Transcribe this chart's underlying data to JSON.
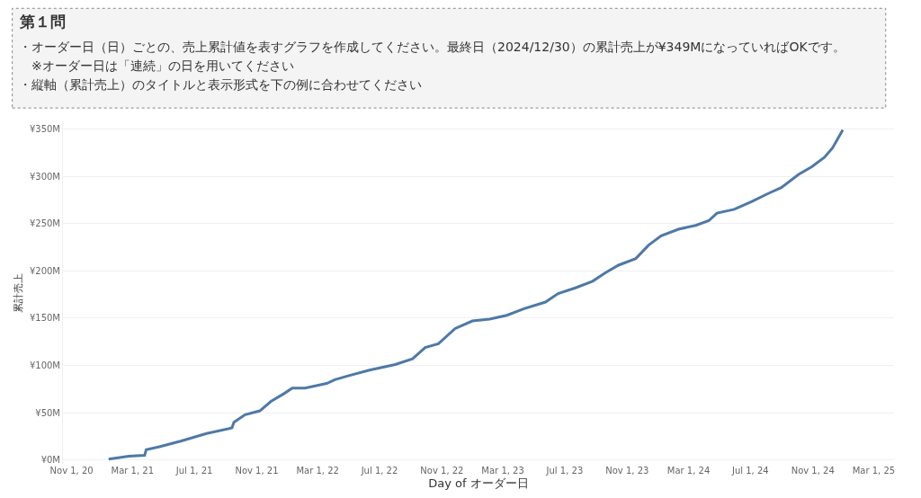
{
  "chart_data": {
    "type": "line",
    "title": "第１問",
    "subtitle": "・オーダー日（日）ごとの、売上累計値を表すグラフを作成してください。最終日（2024/12/30）の累計売上が¥349MになっていればOKです。",
    "annotations": [
      "　※オーダー日は「連続」の日を用いてください",
      "・縦軸（累計売上）のタイトルと表示形式を下の例に合わせてください"
    ],
    "xlabel": "Day of オーダー日",
    "ylabel": "累計売上",
    "x": [
      "2021-01-13",
      "2021-02-22",
      "2021-03-25",
      "2021-03-28",
      "2021-04-23",
      "2021-06-04",
      "2021-07-25",
      "2021-09-13",
      "2021-09-17",
      "2021-10-09",
      "2021-11-07",
      "2021-11-29",
      "2021-12-24",
      "2022-01-10",
      "2022-02-04",
      "2022-03-19",
      "2022-04-04",
      "2022-04-30",
      "2022-06-11",
      "2022-08-01",
      "2022-09-04",
      "2022-09-29",
      "2022-10-25",
      "2022-11-27",
      "2022-12-31",
      "2023-02-03",
      "2023-03-09",
      "2023-04-12",
      "2023-05-24",
      "2023-06-18",
      "2023-07-22",
      "2023-08-25",
      "2023-09-19",
      "2023-10-15",
      "2023-11-18",
      "2023-12-13",
      "2024-01-07",
      "2024-02-10",
      "2024-03-15",
      "2024-04-10",
      "2024-04-26",
      "2024-05-30",
      "2024-07-03",
      "2024-08-06",
      "2024-08-31",
      "2024-10-04",
      "2024-10-30",
      "2024-11-24",
      "2024-12-10",
      "2024-12-30"
    ],
    "series": [
      {
        "color": "#4e79a7",
        "values": [
          1,
          4,
          5,
          11,
          14,
          20,
          28,
          34,
          40,
          48,
          52,
          62,
          70,
          76,
          76,
          81,
          85,
          89,
          95,
          101,
          107,
          119,
          123,
          139,
          147,
          149,
          153,
          160,
          167,
          176,
          182,
          189,
          198,
          206,
          213,
          227,
          237,
          244,
          248,
          253,
          261,
          265,
          273,
          282,
          288,
          302,
          310,
          320,
          330,
          349
        ]
      }
    ],
    "xlim": [
      "2020-10-15",
      "2025-04-10"
    ],
    "xticks": [
      {
        "value": "2020-11-01",
        "label": "Nov 1, 20"
      },
      {
        "value": "2021-03-01",
        "label": "Mar 1, 21"
      },
      {
        "value": "2021-07-01",
        "label": "Jul 1, 21"
      },
      {
        "value": "2021-11-01",
        "label": "Nov 1, 21"
      },
      {
        "value": "2022-03-01",
        "label": "Mar 1, 22"
      },
      {
        "value": "2022-07-01",
        "label": "Jul 1, 22"
      },
      {
        "value": "2022-11-01",
        "label": "Nov 1, 22"
      },
      {
        "value": "2023-03-01",
        "label": "Mar 1, 23"
      },
      {
        "value": "2023-07-01",
        "label": "Jul 1, 23"
      },
      {
        "value": "2023-11-01",
        "label": "Nov 1, 23"
      },
      {
        "value": "2024-03-01",
        "label": "Mar 1, 24"
      },
      {
        "value": "2024-07-01",
        "label": "Jul 1, 24"
      },
      {
        "value": "2024-11-01",
        "label": "Nov 1, 24"
      },
      {
        "value": "2025-03-01",
        "label": "Mar 1, 25"
      }
    ],
    "ylim": [
      -4,
      358
    ],
    "yticks": [
      {
        "value": 0,
        "label": "¥0M"
      },
      {
        "value": 50,
        "label": "¥50M"
      },
      {
        "value": 100,
        "label": "¥100M"
      },
      {
        "value": 150,
        "label": "¥150M"
      },
      {
        "value": 200,
        "label": "¥200M"
      },
      {
        "value": 250,
        "label": "¥250M"
      },
      {
        "value": 300,
        "label": "¥300M"
      },
      {
        "value": 350,
        "label": "¥350M"
      }
    ],
    "grid": "y",
    "marker": "none",
    "line_style": "solid"
  }
}
